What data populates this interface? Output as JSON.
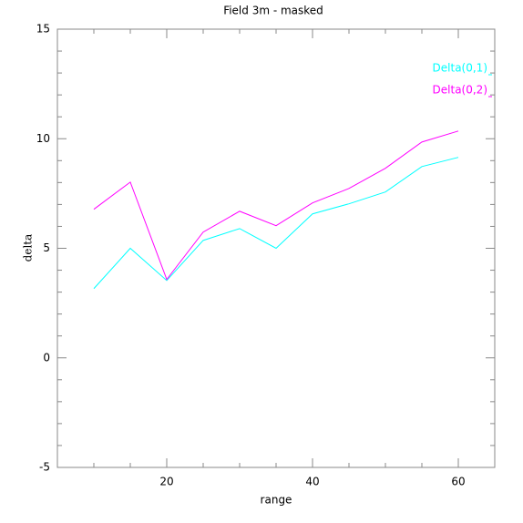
{
  "chart_data": {
    "type": "line",
    "title": "Field 3m - masked",
    "x_label": "range",
    "y_label": "delta",
    "x": [
      10,
      15,
      20,
      25,
      30,
      35,
      40,
      45,
      50,
      55,
      60
    ],
    "series": [
      {
        "name": "Delta(0,1)",
        "color": "#00ffff",
        "values": [
          3.16,
          5.0,
          3.53,
          5.36,
          5.9,
          5.0,
          6.57,
          7.03,
          7.57,
          8.73,
          9.15
        ]
      },
      {
        "name": "Delta(0,2)",
        "color": "#ff00ff",
        "values": [
          6.78,
          8.02,
          3.58,
          5.74,
          6.69,
          6.03,
          7.07,
          7.73,
          8.65,
          9.85,
          10.35
        ]
      }
    ],
    "xlim": [
      5,
      65
    ],
    "xticks": [
      20,
      40,
      60
    ],
    "ylim": [
      -5,
      15
    ],
    "yticks": [
      -5,
      0,
      5,
      10,
      15
    ],
    "legend": "top-right"
  }
}
